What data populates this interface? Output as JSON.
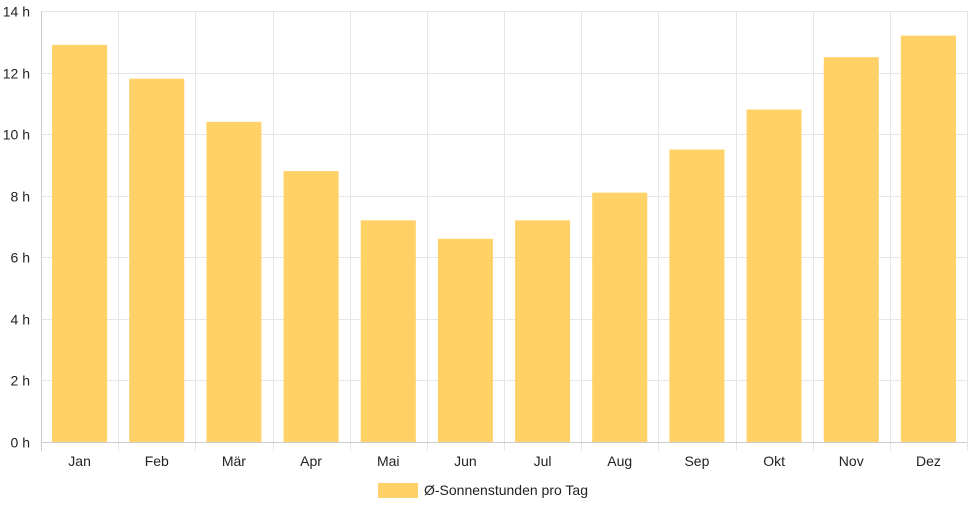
{
  "chart_data": {
    "type": "bar",
    "categories": [
      "Jan",
      "Feb",
      "Mär",
      "Apr",
      "Mai",
      "Jun",
      "Jul",
      "Aug",
      "Sep",
      "Okt",
      "Nov",
      "Dez"
    ],
    "series": [
      {
        "name": "Ø-Sonnenstunden pro Tag",
        "values": [
          12.9,
          11.8,
          10.4,
          8.8,
          7.2,
          6.6,
          7.2,
          8.1,
          9.5,
          10.8,
          12.5,
          13.2
        ]
      }
    ],
    "y_ticks": [
      "0 h",
      "2 h",
      "4 h",
      "6 h",
      "8 h",
      "10 h",
      "12 h",
      "14 h"
    ],
    "ylim": [
      0,
      14
    ],
    "grid": true,
    "legend_position": "bottom",
    "colors": {
      "bar": "#ffd166",
      "grid": "#e6e6e6",
      "axis": "#cccccc",
      "text": "#222222"
    }
  }
}
